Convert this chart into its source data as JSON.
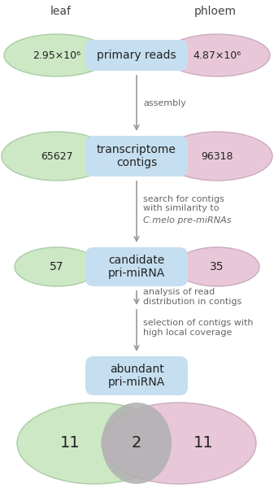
{
  "bg_color": "#ffffff",
  "title_leaf": "leaf",
  "title_phloem": "phloem",
  "box1_label": "primary reads",
  "box2_label": "transcriptome\ncontigs",
  "box3_label": "candidate\npri-miRNA",
  "box4_label": "abundant\npri-miRNA",
  "box_color": "#c5dff0",
  "box_edge_color": "#c5dff0",
  "green_ellipse_color": "#cce8c4",
  "green_ellipse_edge": "#aacca4",
  "pink_ellipse_color": "#e8c8d8",
  "pink_ellipse_edge": "#ccaac0",
  "arrow_color": "#999999",
  "text_dark": "#222222",
  "label_color": "#666666",
  "leaf_val1": "2.95×10⁶",
  "leaf_val2": "65627",
  "leaf_val3": "57",
  "phloem_val1": "4.87×10⁶",
  "phloem_val2": "96318",
  "phloem_val3": "35",
  "venn_left": "11",
  "venn_center": "2",
  "venn_right": "11",
  "venn_green_color": "#cce8c4",
  "venn_green_edge": "#aacca4",
  "venn_pink_color": "#e8c8d8",
  "venn_pink_edge": "#ccaac0",
  "venn_overlap_color": "#b0b0b0"
}
